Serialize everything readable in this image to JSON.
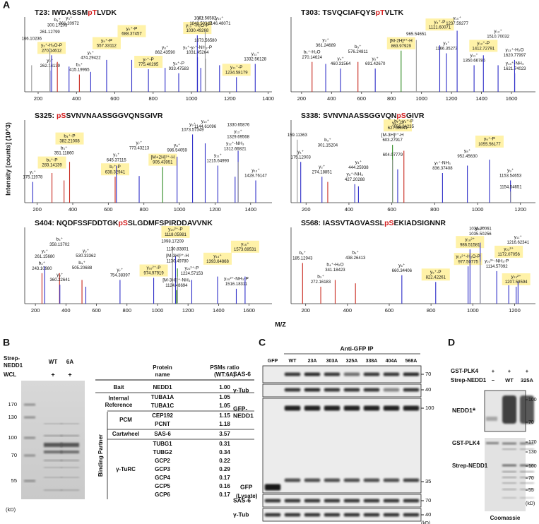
{
  "panel_a": {
    "letter": "A",
    "y_label": "Intensity [counts] (10^3)",
    "x_label": "M/Z",
    "colors": {
      "b_ion": "#c8281e",
      "y_ion": "#2d2dc8",
      "precursor": "#2e8b22",
      "unassigned": "#9a9a9a",
      "box": "#fff2a8"
    },
    "spectra": [
      {
        "site": "T23:",
        "sequence": [
          "IWDASSM",
          "pT",
          "LVDK"
        ],
        "xlim": [
          130,
          1420
        ],
        "xticks": [
          200,
          400,
          600,
          800,
          1000,
          1200,
          1400
        ],
        "peaks": [
          {
            "ion": "y₂⁺",
            "mz": "262.14139",
            "kind": "y_ion",
            "h": 32
          },
          {
            "ion": "y₂⁺-H₂O-P",
            "mz": "270.14612",
            "kind": "y_ion",
            "h": 55,
            "boxed": true
          },
          {
            "mz": "166.10236",
            "kind": "unassigned",
            "h": 40
          },
          {
            "mz": "261.12799",
            "kind": "unassigned",
            "h": 66
          },
          {
            "ion": "b₃⁺",
            "mz": "300.17203",
            "kind": "b_ion",
            "h": 45
          },
          {
            "ion": "y₃⁺",
            "mz": "361.20972",
            "kind": "y_ion",
            "h": 38
          },
          {
            "ion": "b₃⁺",
            "mz": "415.19965",
            "kind": "b_ion",
            "h": 26
          },
          {
            "ion": "y₄⁺",
            "mz": "474.29422",
            "kind": "y_ion",
            "h": 30
          },
          {
            "ion": "y₅⁺-P",
            "mz": "557.33112",
            "kind": "y_ion",
            "h": 48,
            "boxed": true
          },
          {
            "ion": "y₆⁺-P",
            "mz": "688.37457",
            "kind": "y_ion",
            "h": 48,
            "boxed": true
          },
          {
            "ion": "y₇⁺-P",
            "mz": "775.40295",
            "kind": "y_ion",
            "h": 34,
            "boxed": true
          },
          {
            "ion": "y₈⁺",
            "mz": "862.43590",
            "kind": "y_ion",
            "h": 36
          },
          {
            "ion": "y₈⁺-P",
            "mz": "933.47583",
            "kind": "y_ion",
            "h": 28
          },
          {
            "ion": "y₈⁺-y₇⁺-NH₃-P",
            "mz": "1031.45264",
            "kind": "y_ion",
            "h": 52
          },
          {
            "ion": "y₁₀⁺-H₂O-P",
            "mz": "1030.49268",
            "kind": "y_ion",
            "h": 85,
            "boxed": true
          },
          {
            "ion": "y₉⁺",
            "mz": "1048.50317",
            "kind": "y_ion",
            "h": 36
          },
          {
            "mz": "1071.56582",
            "kind": "unassigned",
            "h": 92
          },
          {
            "mz": "1073.56580",
            "kind": "unassigned",
            "h": 50
          },
          {
            "ion": "y₁₀⁺",
            "mz": "1146.48071",
            "kind": "y_ion",
            "h": 40
          },
          {
            "ion": "y₁₁⁺-P",
            "mz": "1234.58179",
            "kind": "y_ion",
            "h": 22,
            "boxed": true
          },
          {
            "ion": "y₁₁⁺",
            "mz": "1332.56128",
            "kind": "y_ion",
            "h": 42
          }
        ]
      },
      {
        "site": "T303:",
        "sequence": [
          "TSVQCIAFQYS",
          "pT",
          "VLTK"
        ],
        "xlim": [
          130,
          1760
        ],
        "xticks": [
          200,
          400,
          600,
          800,
          1000,
          1200,
          1400,
          1600
        ],
        "peaks": [
          {
            "ion": "b₁⁺-H₂O",
            "mz": "270.14624",
            "kind": "b_ion",
            "h": 45
          },
          {
            "ion": "y₃⁺",
            "mz": "361.24689",
            "kind": "y_ion",
            "h": 42
          },
          {
            "ion": "y₄⁺",
            "mz": "460.31564",
            "kind": "y_ion",
            "h": 35
          },
          {
            "ion": "b₅⁺",
            "mz": "576.24811",
            "kind": "b_ion",
            "h": 45
          },
          {
            "ion": "y₅⁺",
            "mz": "691.42670",
            "kind": "y_ion",
            "h": 35
          },
          {
            "ion": "[M-2H]²⁺-H",
            "mz": "863.97929",
            "kind": "precursor",
            "h": 62,
            "boxed": true
          },
          {
            "mz": "965.54651",
            "kind": "unassigned",
            "h": 78
          },
          {
            "ion": "y₈⁺-P",
            "mz": "1121.60071",
            "kind": "y_ion",
            "h": 70,
            "boxed": true
          },
          {
            "ion": "y₉⁺",
            "mz": "1166.35273",
            "kind": "y_ion",
            "h": 58
          },
          {
            "ion": "y₁₀⁺",
            "mz": "1237.59277",
            "kind": "y_ion",
            "h": 92
          },
          {
            "ion": "y₁₁⁺",
            "mz": "1350.66785",
            "kind": "y_ion",
            "h": 40
          },
          {
            "ion": "y₁₂⁺-P",
            "mz": "1412.72791",
            "kind": "y_ion",
            "h": 55,
            "boxed": true
          },
          {
            "ion": "y₁₂⁺",
            "mz": "1510.70032",
            "kind": "y_ion",
            "h": 40
          },
          {
            "ion": "y₁₃⁺-H₂O",
            "mz": "1620.77997",
            "kind": "y_ion",
            "h": 48
          },
          {
            "ion": "y₁₃⁺-NH₃",
            "mz": "1621.74023",
            "kind": "y_ion",
            "h": 28
          }
        ]
      },
      {
        "site": "S325:",
        "sequence": [
          "pS",
          "SVNVNAASSGGVQNSGIVR"
        ],
        "xlim": [
          130,
          1520
        ],
        "xticks": [
          200,
          400,
          600,
          800,
          1000,
          1200,
          1400
        ],
        "peaks": [
          {
            "ion": "y₁⁺",
            "mz": "175.11978",
            "kind": "y_ion",
            "h": 28
          },
          {
            "ion": "b₃⁺-P",
            "mz": "283.14139",
            "kind": "b_ion",
            "h": 40,
            "boxed": true
          },
          {
            "ion": "b₃⁺",
            "mz": "351.11860",
            "kind": "b_ion",
            "h": 30
          },
          {
            "ion": "b₄⁺-P",
            "mz": "382.21008",
            "kind": "b_ion",
            "h": 55,
            "boxed": true
          },
          {
            "ion": "b₇⁺-P",
            "mz": "638.32941",
            "kind": "b_ion",
            "h": 35,
            "boxed": true
          },
          {
            "ion": "y₅⁺",
            "mz": "645.37115",
            "kind": "y_ion",
            "h": 50
          },
          {
            "ion": "y₇⁺",
            "mz": "773.43213",
            "kind": "y_ion",
            "h": 36
          },
          {
            "ion": "[M+2H]²⁺-H",
            "mz": "905.43951",
            "kind": "precursor",
            "h": 48,
            "boxed": true
          },
          {
            "ion": "y₈⁺",
            "mz": "986.54059",
            "kind": "y_ion",
            "h": 62
          },
          {
            "ion": "y₉⁺",
            "mz": "1073.57349",
            "kind": "y_ion",
            "h": 92
          },
          {
            "ion": "y₁₀⁺",
            "mz": "1144.61096",
            "kind": "y_ion",
            "h": 80
          },
          {
            "ion": "y₁₁⁺",
            "mz": "1215.64990",
            "kind": "y_ion",
            "h": 50
          },
          {
            "ion": "y₁₂⁺-NH₃",
            "mz": "1312.66821",
            "kind": "y_ion",
            "h": 35
          },
          {
            "ion": "y₁₂⁺",
            "mz": "1329.69568",
            "kind": "y_ion",
            "h": 70
          },
          {
            "mz": "1330.65876",
            "kind": "unassigned",
            "h": 55
          },
          {
            "ion": "y₁₃⁺",
            "mz": "1428.76147",
            "kind": "y_ion",
            "h": 30
          }
        ]
      },
      {
        "site": "S338:",
        "sequence": [
          "SVNVNAASSGGVQN",
          "pS",
          "GIVR"
        ],
        "xlim": [
          130,
          1270
        ],
        "xticks": [
          200,
          400,
          600,
          800,
          1000,
          1200
        ],
        "peaks": [
          {
            "mz": "159.11363",
            "kind": "unassigned",
            "h": 85
          },
          {
            "ion": "y₁⁺",
            "mz": "175.12003",
            "kind": "y_ion",
            "h": 55
          },
          {
            "ion": "y₂⁺",
            "mz": "274.18851",
            "kind": "y_ion",
            "h": 35
          },
          {
            "ion": "b₃⁺",
            "mz": "301.15204",
            "kind": "b_ion",
            "h": 28
          },
          {
            "ion": "y₅⁺-NH₃",
            "mz": "427.20288",
            "kind": "y_ion",
            "h": 25
          },
          {
            "ion": "y₄⁺",
            "mz": "444.25938",
            "kind": "y_ion",
            "h": 22
          },
          {
            "ion": "[M-3H]³⁺-H",
            "mz": "603.27917",
            "kind": "precursor",
            "h": 78
          },
          {
            "mz": "604.07779",
            "kind": "unassigned",
            "h": 58
          },
          {
            "ion": "y₆⁺-P",
            "mz": "627.36041",
            "kind": "y_ion",
            "h": 45,
            "boxed": true
          },
          {
            "ion": "b₇⁺-y₅⁺-P",
            "mz": "656.34235",
            "kind": "b_ion",
            "h": 70
          },
          {
            "ion": "y₇⁺-NH₃",
            "mz": "836.37408",
            "kind": "y_ion",
            "h": 40
          },
          {
            "ion": "y₈⁺",
            "mz": "952.45630",
            "kind": "y_ion",
            "h": 50
          },
          {
            "ion": "y₉⁺-P",
            "mz": "1055.56177",
            "kind": "y_ion",
            "h": 58,
            "boxed": true
          },
          {
            "ion": "y₉⁺",
            "mz": "1153.54653",
            "kind": "y_ion",
            "h": 30
          },
          {
            "mz": "1154.54651",
            "kind": "unassigned",
            "h": 15
          }
        ]
      },
      {
        "site": "S404:",
        "sequence": [
          "NQDFSSFDDTGK",
          "pS",
          "SLGDMFSPIRDDAVVNK"
        ],
        "xlim": [
          130,
          1750
        ],
        "xticks": [
          200,
          400,
          600,
          800,
          1000,
          1200,
          1400,
          1600
        ],
        "peaks": [
          {
            "ion": "b₂⁺",
            "mz": "243.10980",
            "kind": "b_ion",
            "h": 45
          },
          {
            "ion": "y₂⁺",
            "mz": "261.15680",
            "kind": "y_ion",
            "h": 55
          },
          {
            "ion": "b₃⁺",
            "mz": "358.13702",
            "kind": "b_ion",
            "h": 45
          },
          {
            "ion": "y₃⁺",
            "mz": "360.22641",
            "kind": "y_ion",
            "h": 28
          },
          {
            "ion": "b₄⁺",
            "mz": "505.20688",
            "kind": "b_ion",
            "h": 35
          },
          {
            "ion": "y₅⁺",
            "mz": "530.33362",
            "kind": "y_ion",
            "h": 25
          },
          {
            "ion": "y₇⁺",
            "mz": "754.38397",
            "kind": "y_ion",
            "h": 35
          },
          {
            "ion": "y₁₆²⁺-P",
            "mz": "974.97919",
            "kind": "y_ion",
            "h": 38,
            "boxed": true
          },
          {
            "mz": "1098.17209",
            "kind": "unassigned",
            "h": 85
          },
          {
            "ion": "y₂₀²⁺-P",
            "mz": "1118.05981",
            "kind": "y_ion",
            "h": 70,
            "boxed": true
          },
          {
            "ion": "[M-3H]³⁺-NH₃",
            "mz": "1124.48694",
            "kind": "precursor",
            "h": 20
          },
          {
            "ion": "[M-3H]³⁺-H",
            "mz": "1130.49780",
            "kind": "precursor",
            "h": 52
          },
          {
            "mz": "1130.83801",
            "kind": "unassigned",
            "h": 40
          },
          {
            "ion": "y₂₁²⁺-P",
            "mz": "1224.57153",
            "kind": "y_ion",
            "h": 35
          },
          {
            "ion": "y₁₄⁺",
            "mz": "1393.64868",
            "kind": "y_ion",
            "h": 40,
            "boxed": true
          },
          {
            "ion": "y₂₅²⁺-NH₃-P",
            "mz": "1516.18311",
            "kind": "y_ion",
            "h": 22
          },
          {
            "ion": "y₁₅⁺",
            "mz": "1573.69531",
            "kind": "y_ion",
            "h": 40,
            "boxed": true
          }
        ]
      },
      {
        "site": "S568:",
        "sequence": [
          "IASSVTAGVASSL",
          "pS",
          "EKIADSIGNNR"
        ],
        "xlim": [
          130,
          1300
        ],
        "xticks": [
          200,
          400,
          600,
          800,
          1000,
          1200
        ],
        "peaks": [
          {
            "ion": "b₂⁺",
            "mz": "185.12943",
            "kind": "b_ion",
            "h": 60
          },
          {
            "ion": "b₃⁺",
            "mz": "272.16183",
            "kind": "b_ion",
            "h": 25
          },
          {
            "ion": "b₄⁺-H₂O",
            "mz": "341.18423",
            "kind": "b_ion",
            "h": 35
          },
          {
            "ion": "b₅⁺",
            "mz": "438.26413",
            "kind": "b_ion",
            "h": 30
          },
          {
            "ion": "y₆⁺",
            "mz": "660.34406",
            "kind": "y_ion",
            "h": 42
          },
          {
            "ion": "y₉⁺-P",
            "mz": "822.42261",
            "kind": "y_ion",
            "h": 32,
            "boxed": true
          },
          {
            "ion": "y₁₉²⁺-H₂O-P",
            "mz": "977.50775",
            "kind": "y_ion",
            "h": 55,
            "boxed": true
          },
          {
            "ion": "y₁₈²⁺",
            "mz": "986.51581",
            "kind": "y_ion",
            "h": 80,
            "boxed": true
          },
          {
            "ion": "y₂₀²⁺",
            "mz": "1035.50256",
            "kind": "y_ion",
            "h": 90
          },
          {
            "mz": "1036.00061",
            "kind": "unassigned",
            "h": 62
          },
          {
            "ion": "y₂₁²⁺-NH₃-P",
            "mz": "1114.57092",
            "kind": "y_ion",
            "h": 48
          },
          {
            "ion": "y₂₂²⁺",
            "mz": "1172.07056",
            "kind": "y_ion",
            "h": 38,
            "boxed": true
          },
          {
            "ion": "y₂₃²⁺",
            "mz": "1207.58594",
            "kind": "y_ion",
            "h": 25,
            "boxed": true
          },
          {
            "ion": "y₁₁⁺",
            "mz": "1216.62341",
            "kind": "y_ion",
            "h": 32
          }
        ]
      }
    ]
  },
  "panel_b": {
    "letter": "B",
    "bait_label": [
      "Strep-",
      "NEDD1"
    ],
    "lanes": [
      "WT",
      "6A"
    ],
    "wcl_label": "WCL",
    "wcl_marks": [
      "+",
      "+"
    ],
    "markers": [
      "170",
      "130",
      "100",
      "70",
      "55"
    ],
    "unit": "(kD)",
    "table": {
      "header": [
        [
          "Protein",
          "name"
        ],
        [
          "PSMs ratio",
          "(WT:6A)"
        ]
      ],
      "binding_partner": "Binding Partner",
      "groups": [
        {
          "name": [
            "Bait"
          ],
          "rows": [
            [
              "NEDD1",
              "1.00"
            ]
          ]
        },
        {
          "name": [
            "Internal",
            "Reference"
          ],
          "rows": [
            [
              "TUBA1A",
              "1.05"
            ],
            [
              "TUBA1C",
              "1.05"
            ]
          ]
        },
        {
          "name": [
            "PCM"
          ],
          "rows": [
            [
              "CEP192",
              "1.15"
            ],
            [
              "PCNT",
              "1.18"
            ]
          ]
        },
        {
          "name": [
            "Cartwheel"
          ],
          "rows": [
            [
              "SAS-6",
              "3.57"
            ]
          ]
        },
        {
          "name": [
            "γ-TuRC"
          ],
          "rows": [
            [
              "TUBG1",
              "0.31"
            ],
            [
              "TUBG2",
              "0.34"
            ],
            [
              "GCP2",
              "0.22"
            ],
            [
              "GCP3",
              "0.29"
            ],
            [
              "GCP4",
              "0.17"
            ],
            [
              "GCP5",
              "0.16"
            ],
            [
              "GCP6",
              "0.17"
            ]
          ]
        }
      ]
    }
  },
  "panel_c": {
    "letter": "C",
    "ip_label": "Anti-GFP IP",
    "lanes": [
      "GFP",
      "WT",
      "23A",
      "303A",
      "325A",
      "338A",
      "404A",
      "568A"
    ],
    "blots": [
      {
        "label": [
          "SAS-6"
        ],
        "markers": [
          "70"
        ]
      },
      {
        "label": [
          "γ-Tub"
        ],
        "markers": [
          "40"
        ]
      },
      {
        "label": [
          "GFP-",
          "NEDD1"
        ],
        "markers": [
          "100",
          "35"
        ]
      },
      {
        "label": [
          "SAS-6"
        ],
        "markers": [
          "70"
        ]
      },
      {
        "label": [
          "γ-Tub"
        ],
        "markers": [
          "40"
        ]
      }
    ],
    "gfp_label": "GFP",
    "lysate_label": "(Lysate)",
    "unit": "(kD)"
  },
  "panel_d": {
    "letter": "D",
    "rows": [
      {
        "label": "GST-PLK4",
        "lanes": [
          "+",
          "+",
          "+"
        ]
      },
      {
        "label": "Strep-NEDD1",
        "lanes": [
          "−",
          "WT",
          "325A"
        ]
      }
    ],
    "top_label": "NEDD1",
    "star": "*",
    "top_markers": [
      "100",
      "70"
    ],
    "bottom_labels": [
      "GST-PLK4",
      "Strep-NEDD1"
    ],
    "bottom_markers": [
      "170",
      "130",
      "100",
      "70",
      "55"
    ],
    "unit": "(kD)",
    "stain": "Coomassie"
  }
}
